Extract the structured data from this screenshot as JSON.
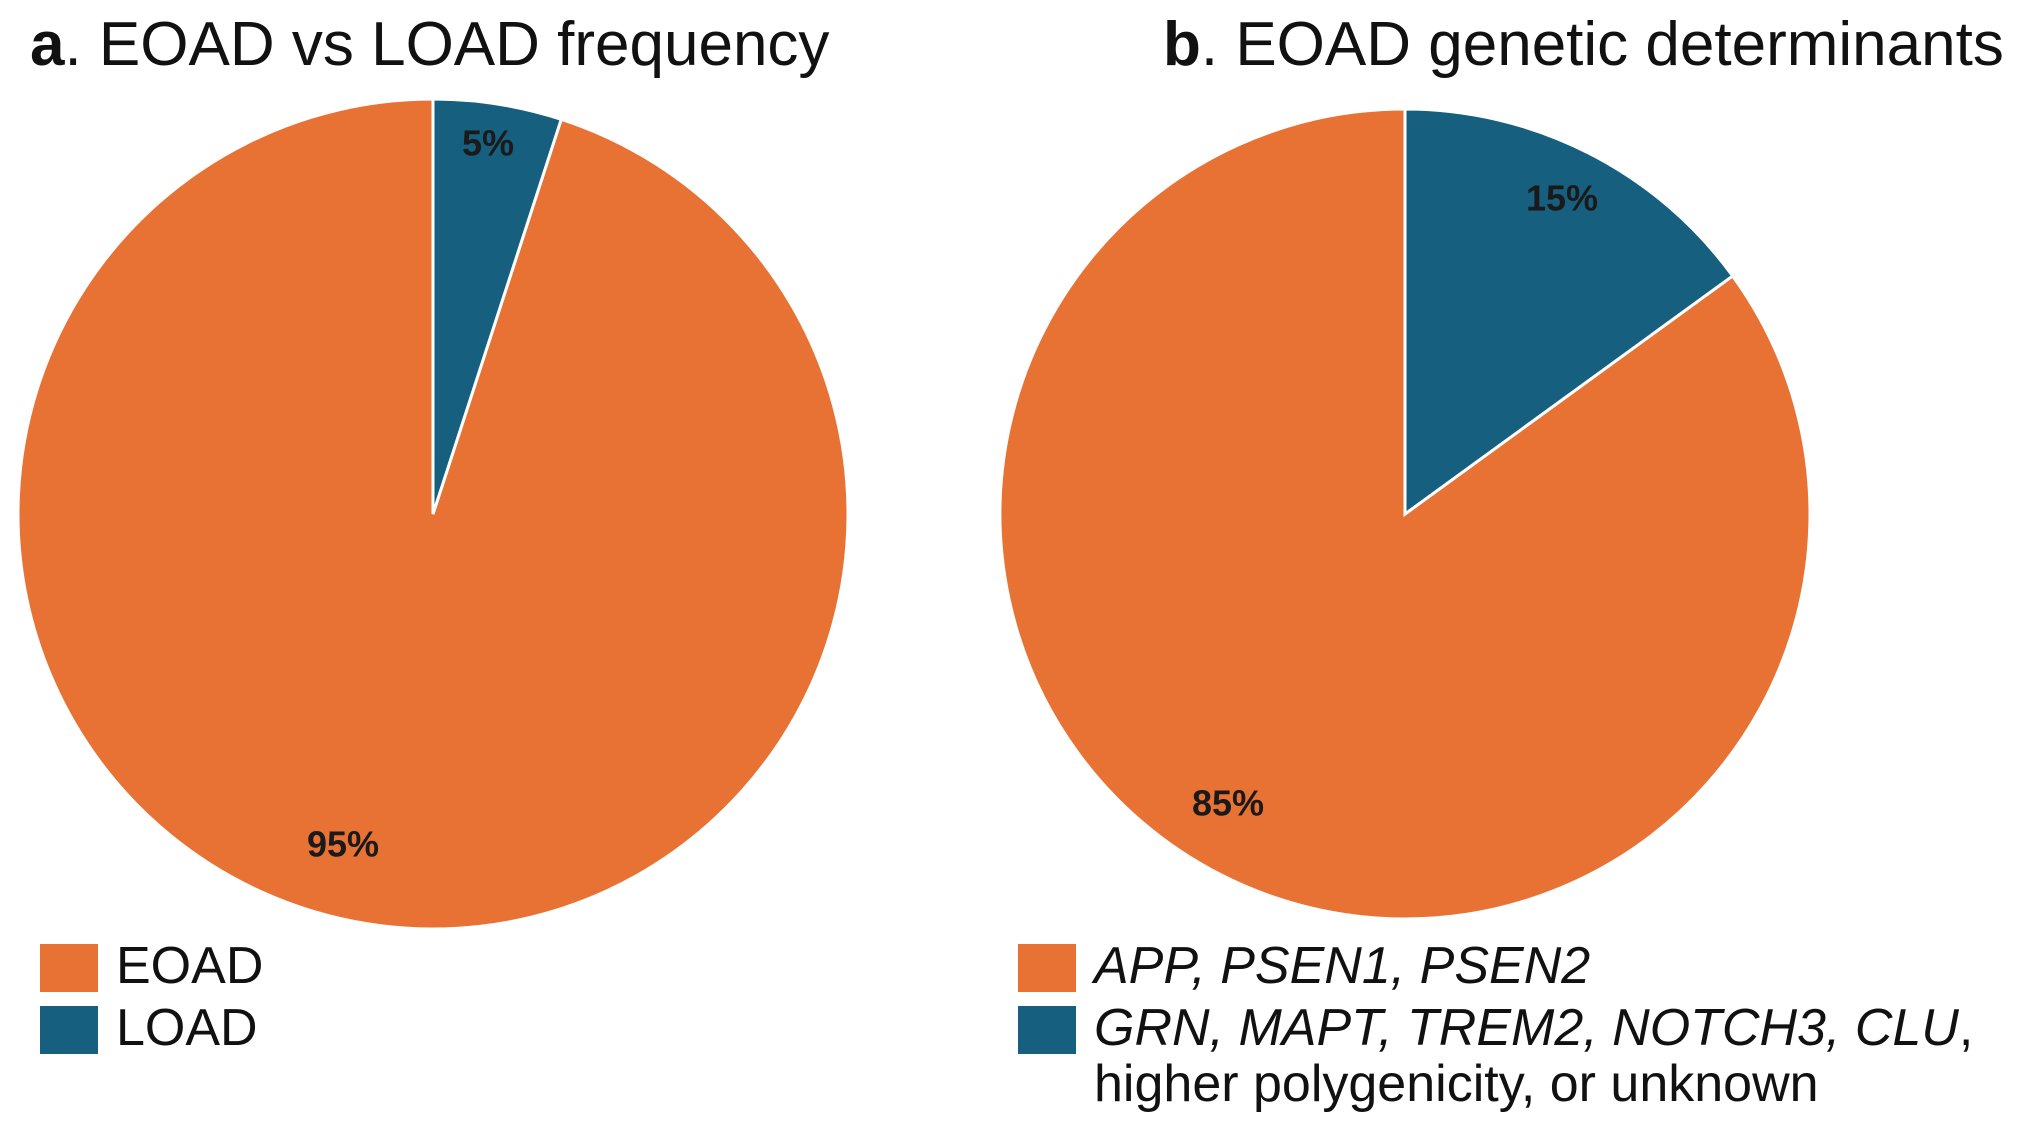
{
  "chart_data": [
    {
      "type": "pie",
      "panel_letter": "a",
      "title": ". EOAD vs LOAD frequency",
      "slices": [
        {
          "name": "EOAD",
          "value": 95,
          "label": "95%",
          "color": "#E87134"
        },
        {
          "name": "LOAD",
          "value": 5,
          "label": "5%",
          "color": "#165F7E"
        }
      ],
      "start_order": [
        "LOAD",
        "EOAD"
      ],
      "legend": [
        "EOAD",
        "LOAD"
      ],
      "legend_placement": "bottom-left"
    },
    {
      "type": "pie",
      "panel_letter": "b",
      "title": ". EOAD genetic determinants",
      "slices": [
        {
          "name": "APP, PSEN1, PSEN2",
          "value": 85,
          "label": "85%",
          "color": "#E87134"
        },
        {
          "name": "GRN, MAPT, TREM2, NOTCH3, CLU, higher polygenicity, or unknown",
          "value": 15,
          "label": "15%",
          "color": "#165F7E"
        }
      ],
      "legend": {
        "item1_italic": "APP, PSEN1, PSEN2",
        "item2_italic": "GRN, MAPT, TREM2, NOTCH3, CLU",
        "item2_rest": ",",
        "item2_line2": "higher polygenicity, or unknown"
      },
      "legend_placement": "bottom"
    }
  ],
  "colors": {
    "orange": "#E87134",
    "blue": "#165F7E"
  }
}
